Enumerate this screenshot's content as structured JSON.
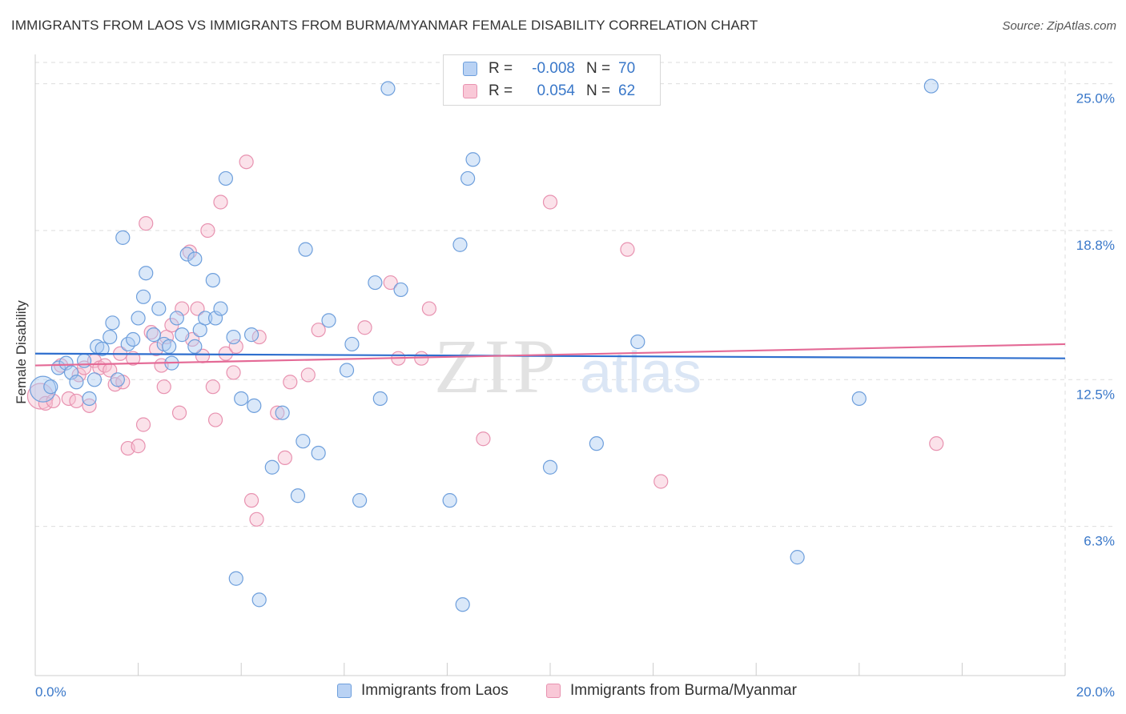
{
  "header": {
    "title": "IMMIGRANTS FROM LAOS VS IMMIGRANTS FROM BURMA/MYANMAR FEMALE DISABILITY CORRELATION CHART",
    "source": "Source: ZipAtlas.com"
  },
  "colors": {
    "blue_fill": "#aecbf2",
    "blue_stroke": "#6e9fdc",
    "blue_line": "#2f6fce",
    "pink_fill": "#f7bfd0",
    "pink_stroke": "#e892b0",
    "pink_line": "#e46a96",
    "axis_text": "#3a78c9",
    "grid": "#dddddd"
  },
  "legend": {
    "rows": [
      {
        "r_label": "R =",
        "r_value": "-0.008",
        "n_label": "N =",
        "n_value": "70"
      },
      {
        "r_label": "R =",
        "r_value": "0.054",
        "n_label": "N =",
        "n_value": "62"
      }
    ]
  },
  "bottom_legend": {
    "laos": "Immigrants from Laos",
    "burma": "Immigrants from Burma/Myanmar"
  },
  "watermark": {
    "zip": "ZIP",
    "atlas": "atlas"
  },
  "chart_data": {
    "type": "scatter",
    "title": "IMMIGRANTS FROM LAOS VS IMMIGRANTS FROM BURMA/MYANMAR FEMALE DISABILITY CORRELATION CHART",
    "xlabel": "",
    "ylabel": "Female Disability",
    "xlim": [
      0,
      20
    ],
    "ylim": [
      0,
      25.9
    ],
    "x_tick_labels": [
      {
        "value": 0,
        "label": "0.0%"
      },
      {
        "value": 20,
        "label": "20.0%"
      }
    ],
    "y_tick_labels": [
      {
        "value": 6.3,
        "label": "6.3%"
      },
      {
        "value": 12.5,
        "label": "12.5%"
      },
      {
        "value": 18.8,
        "label": "18.8%"
      },
      {
        "value": 25.0,
        "label": "25.0%"
      }
    ],
    "x_minor_ticks": [
      0,
      2,
      4,
      6,
      8,
      10,
      12,
      14,
      16,
      18,
      20
    ],
    "series": [
      {
        "name": "Immigrants from Laos",
        "color": "blue",
        "R": -0.008,
        "N": 70,
        "trend": {
          "x": [
            0,
            20
          ],
          "y": [
            13.6,
            13.4
          ]
        },
        "points": [
          {
            "x": 0.15,
            "y": 12.1,
            "big": true
          },
          {
            "x": 0.3,
            "y": 12.2
          },
          {
            "x": 0.45,
            "y": 13.0
          },
          {
            "x": 0.6,
            "y": 13.2
          },
          {
            "x": 0.7,
            "y": 12.8
          },
          {
            "x": 0.8,
            "y": 12.4
          },
          {
            "x": 0.95,
            "y": 13.3
          },
          {
            "x": 1.05,
            "y": 11.7
          },
          {
            "x": 1.15,
            "y": 12.5
          },
          {
            "x": 1.2,
            "y": 13.9
          },
          {
            "x": 1.3,
            "y": 13.8
          },
          {
            "x": 1.45,
            "y": 14.3
          },
          {
            "x": 1.5,
            "y": 14.9
          },
          {
            "x": 1.6,
            "y": 12.5
          },
          {
            "x": 1.7,
            "y": 18.5
          },
          {
            "x": 1.8,
            "y": 14.0
          },
          {
            "x": 1.9,
            "y": 14.2
          },
          {
            "x": 2.0,
            "y": 15.1
          },
          {
            "x": 2.1,
            "y": 16.0
          },
          {
            "x": 2.15,
            "y": 17.0
          },
          {
            "x": 2.3,
            "y": 14.4
          },
          {
            "x": 2.4,
            "y": 15.5
          },
          {
            "x": 2.5,
            "y": 14.0
          },
          {
            "x": 2.6,
            "y": 13.9
          },
          {
            "x": 2.65,
            "y": 13.2
          },
          {
            "x": 2.75,
            "y": 15.1
          },
          {
            "x": 2.85,
            "y": 14.4
          },
          {
            "x": 2.95,
            "y": 17.8
          },
          {
            "x": 3.1,
            "y": 17.6
          },
          {
            "x": 3.1,
            "y": 13.9
          },
          {
            "x": 3.2,
            "y": 14.6
          },
          {
            "x": 3.3,
            "y": 15.1
          },
          {
            "x": 3.5,
            "y": 15.1
          },
          {
            "x": 3.45,
            "y": 16.7
          },
          {
            "x": 3.6,
            "y": 15.5
          },
          {
            "x": 3.7,
            "y": 21.0
          },
          {
            "x": 3.85,
            "y": 14.3
          },
          {
            "x": 3.9,
            "y": 4.1
          },
          {
            "x": 4.0,
            "y": 11.7
          },
          {
            "x": 4.2,
            "y": 14.4
          },
          {
            "x": 4.25,
            "y": 11.4
          },
          {
            "x": 4.35,
            "y": 3.2
          },
          {
            "x": 4.6,
            "y": 8.8
          },
          {
            "x": 4.8,
            "y": 11.1
          },
          {
            "x": 5.1,
            "y": 7.6
          },
          {
            "x": 5.2,
            "y": 9.9
          },
          {
            "x": 5.25,
            "y": 18.0
          },
          {
            "x": 5.5,
            "y": 9.4
          },
          {
            "x": 5.7,
            "y": 15.0
          },
          {
            "x": 6.05,
            "y": 12.9
          },
          {
            "x": 6.15,
            "y": 14.0
          },
          {
            "x": 6.3,
            "y": 7.4
          },
          {
            "x": 6.6,
            "y": 16.6
          },
          {
            "x": 6.7,
            "y": 11.7
          },
          {
            "x": 6.85,
            "y": 24.8
          },
          {
            "x": 7.1,
            "y": 16.3
          },
          {
            "x": 8.05,
            "y": 7.4
          },
          {
            "x": 8.25,
            "y": 18.2
          },
          {
            "x": 8.3,
            "y": 3.0
          },
          {
            "x": 8.4,
            "y": 21.0
          },
          {
            "x": 8.5,
            "y": 21.8
          },
          {
            "x": 10.0,
            "y": 8.8
          },
          {
            "x": 10.9,
            "y": 9.8
          },
          {
            "x": 11.7,
            "y": 14.1
          },
          {
            "x": 14.8,
            "y": 5.0
          },
          {
            "x": 16.0,
            "y": 11.7
          },
          {
            "x": 17.4,
            "y": 24.9
          }
        ]
      },
      {
        "name": "Immigrants from Burma/Myanmar",
        "color": "pink",
        "R": 0.054,
        "N": 62,
        "trend": {
          "x": [
            0,
            20
          ],
          "y": [
            13.1,
            14.0
          ]
        },
        "points": [
          {
            "x": 0.1,
            "y": 11.8,
            "big": true
          },
          {
            "x": 0.2,
            "y": 11.5
          },
          {
            "x": 0.35,
            "y": 11.6
          },
          {
            "x": 0.5,
            "y": 13.1
          },
          {
            "x": 0.65,
            "y": 11.7
          },
          {
            "x": 0.8,
            "y": 11.6
          },
          {
            "x": 0.85,
            "y": 12.7
          },
          {
            "x": 0.95,
            "y": 13.0
          },
          {
            "x": 1.05,
            "y": 11.4
          },
          {
            "x": 1.15,
            "y": 13.3
          },
          {
            "x": 1.25,
            "y": 13.0
          },
          {
            "x": 1.35,
            "y": 13.1
          },
          {
            "x": 1.45,
            "y": 12.9
          },
          {
            "x": 1.55,
            "y": 12.3
          },
          {
            "x": 1.65,
            "y": 13.6
          },
          {
            "x": 1.7,
            "y": 12.4
          },
          {
            "x": 1.8,
            "y": 9.6
          },
          {
            "x": 1.9,
            "y": 13.4
          },
          {
            "x": 2.0,
            "y": 9.7
          },
          {
            "x": 2.1,
            "y": 10.6
          },
          {
            "x": 2.15,
            "y": 19.1
          },
          {
            "x": 2.25,
            "y": 14.5
          },
          {
            "x": 2.35,
            "y": 13.8
          },
          {
            "x": 2.45,
            "y": 13.1
          },
          {
            "x": 2.5,
            "y": 12.2
          },
          {
            "x": 2.55,
            "y": 14.3
          },
          {
            "x": 2.65,
            "y": 14.8
          },
          {
            "x": 2.8,
            "y": 11.1
          },
          {
            "x": 2.85,
            "y": 15.5
          },
          {
            "x": 3.0,
            "y": 17.9
          },
          {
            "x": 3.05,
            "y": 14.2
          },
          {
            "x": 3.15,
            "y": 15.5
          },
          {
            "x": 3.25,
            "y": 13.5
          },
          {
            "x": 3.35,
            "y": 18.8
          },
          {
            "x": 3.45,
            "y": 12.2
          },
          {
            "x": 3.5,
            "y": 10.8
          },
          {
            "x": 3.6,
            "y": 20.0
          },
          {
            "x": 3.7,
            "y": 13.6
          },
          {
            "x": 3.85,
            "y": 12.8
          },
          {
            "x": 3.9,
            "y": 13.9
          },
          {
            "x": 4.1,
            "y": 21.7
          },
          {
            "x": 4.2,
            "y": 7.4
          },
          {
            "x": 4.3,
            "y": 6.6
          },
          {
            "x": 4.35,
            "y": 14.3
          },
          {
            "x": 4.7,
            "y": 11.1
          },
          {
            "x": 4.85,
            "y": 9.2
          },
          {
            "x": 4.95,
            "y": 12.4
          },
          {
            "x": 5.3,
            "y": 12.7
          },
          {
            "x": 5.5,
            "y": 14.6
          },
          {
            "x": 6.4,
            "y": 14.7
          },
          {
            "x": 6.9,
            "y": 16.6
          },
          {
            "x": 7.05,
            "y": 13.4
          },
          {
            "x": 7.5,
            "y": 13.4
          },
          {
            "x": 7.65,
            "y": 15.5
          },
          {
            "x": 8.7,
            "y": 10.0
          },
          {
            "x": 10.0,
            "y": 20.0
          },
          {
            "x": 11.5,
            "y": 18.0
          },
          {
            "x": 12.15,
            "y": 8.2
          },
          {
            "x": 17.5,
            "y": 9.8
          }
        ]
      }
    ]
  }
}
